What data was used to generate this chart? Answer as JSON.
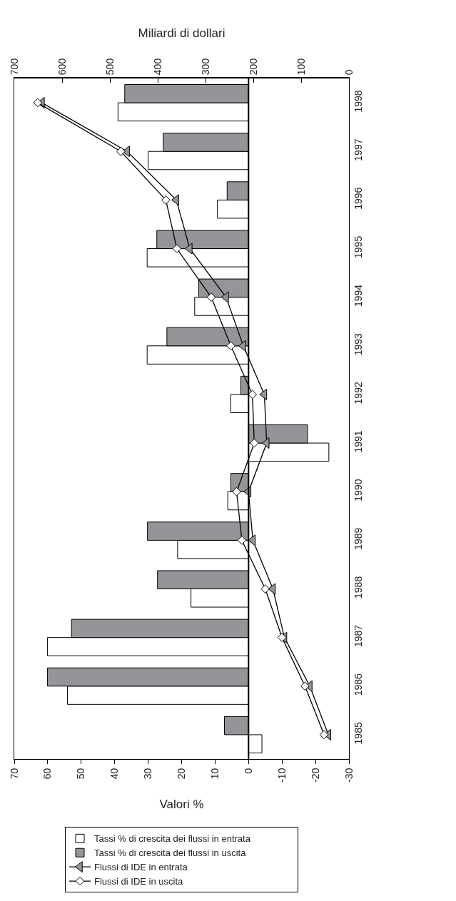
{
  "chart_data": {
    "type": "bar",
    "orientation": "horizontal",
    "xlabel": "Valori %",
    "x2label": "Miliardi di dollari",
    "categories": [
      "1998",
      "1997",
      "1996",
      "1995",
      "1994",
      "1993",
      "1992",
      "1991",
      "1990",
      "1989",
      "1988",
      "1987",
      "1986",
      "1985"
    ],
    "series": [
      {
        "name": "Tassi % di crescita dei flussi in entrata",
        "color": "#ffffff",
        "values": [
          39,
          30,
          9.3,
          30.3,
          16.1,
          30.3,
          5.3,
          -24,
          6.2,
          21.2,
          17.2,
          60.1,
          54.1,
          -4
        ]
      },
      {
        "name": "Tassi % di crescita dei flussi in uscita",
        "color": "#939598",
        "values": [
          37,
          25.5,
          6.4,
          27.4,
          14.9,
          24.4,
          2.3,
          -17.6,
          5.3,
          30.2,
          27.2,
          52.9,
          60.1,
          7.2
        ]
      },
      {
        "name": "Flussi di IDE in entrata",
        "type": "line",
        "axis": "x2",
        "marker": "triangle",
        "color": "#939598",
        "values": [
          642,
          464,
          361,
          333,
          257,
          221,
          177,
          172,
          210,
          201,
          159,
          135,
          82,
          43
        ]
      },
      {
        "name": "Flussi di IDE in uscita",
        "type": "line",
        "axis": "x2",
        "marker": "diamond",
        "color": "#ffffff",
        "values": [
          651,
          477,
          383,
          360,
          288,
          247,
          202,
          198,
          235,
          224,
          175,
          140,
          92,
          52
        ]
      }
    ],
    "xlim": [
      70,
      -30
    ],
    "xticks": [
      70,
      60,
      50,
      40,
      30,
      20,
      10,
      0,
      -10,
      -20,
      -30
    ],
    "x2lim": [
      700,
      0
    ],
    "x2ticks": [
      700,
      600,
      500,
      400,
      300,
      200,
      100,
      0
    ],
    "ref_lines": [
      {
        "axis": "x",
        "value": 0,
        "color": "#000000"
      }
    ],
    "grid": false,
    "legend": "bottom"
  }
}
